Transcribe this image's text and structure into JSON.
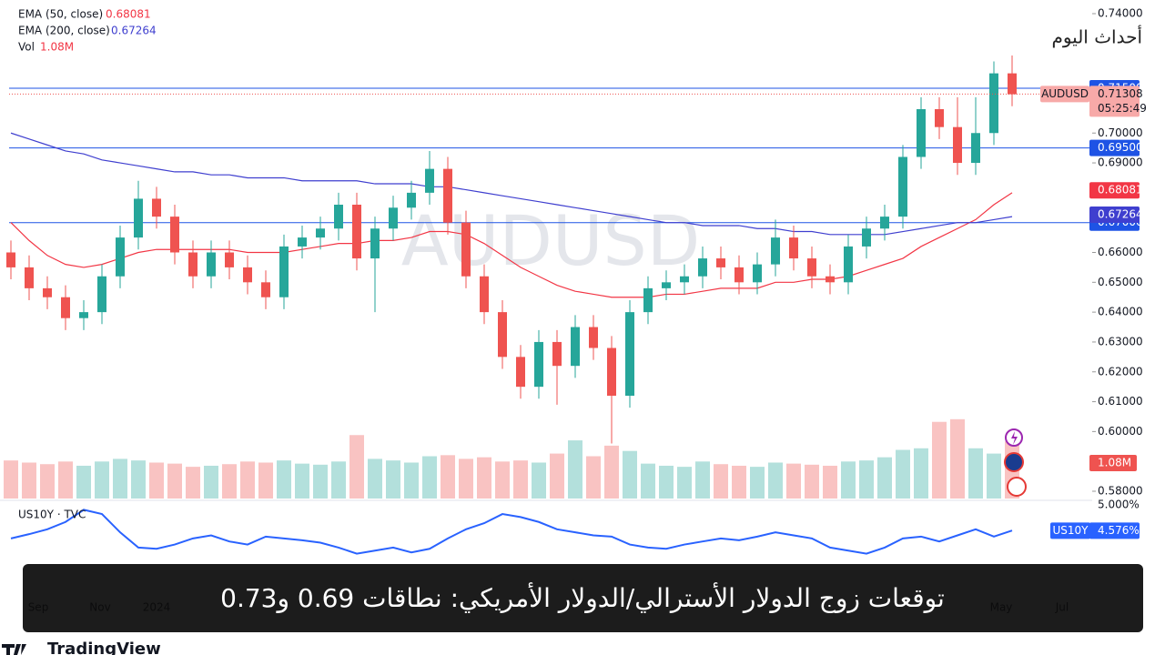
{
  "chart_data": {
    "type": "candlestick",
    "symbol_watermark": "AUDUSD",
    "headline": "توقعات زوج الدولار الأسترالي/الدولار الأمريكي: نطاقات 0.69 و0.73",
    "brand_top": "أحداث اليوم",
    "brand_bottom": "TradingView",
    "ylim": [
      0.58,
      0.74
    ],
    "yticks": [
      {
        "value": 0.74,
        "label": "0.74000"
      },
      {
        "value": 0.7,
        "label": "0.70000"
      },
      {
        "value": 0.69,
        "label": "0.69000"
      },
      {
        "value": 0.66,
        "label": "0.66000"
      },
      {
        "value": 0.65,
        "label": "0.65000"
      },
      {
        "value": 0.64,
        "label": "0.64000"
      },
      {
        "value": 0.63,
        "label": "0.63000"
      },
      {
        "value": 0.62,
        "label": "0.62000"
      },
      {
        "value": 0.61,
        "label": "0.61000"
      },
      {
        "value": 0.6,
        "label": "0.60000"
      },
      {
        "value": 0.58,
        "label": "0.58000"
      }
    ],
    "x_labels": [
      "Sep",
      "Nov",
      "2024",
      "May",
      "Jul"
    ],
    "up_color": "#26a69a",
    "down_color": "#ef5350",
    "open": [
      0.66,
      0.655,
      0.648,
      0.645,
      0.638,
      0.64,
      0.652,
      0.665,
      0.678,
      0.672,
      0.66,
      0.652,
      0.66,
      0.655,
      0.65,
      0.645,
      0.662,
      0.665,
      0.668,
      0.676,
      0.658,
      0.668,
      0.675,
      0.68,
      0.688,
      0.67,
      0.652,
      0.64,
      0.625,
      0.615,
      0.63,
      0.622,
      0.635,
      0.628,
      0.612,
      0.64,
      0.648,
      0.65,
      0.652,
      0.658,
      0.655,
      0.65,
      0.656,
      0.665,
      0.658,
      0.652,
      0.65,
      0.662,
      0.668,
      0.672,
      0.692,
      0.708,
      0.702,
      0.69,
      0.7,
      0.72
    ],
    "high": [
      0.664,
      0.659,
      0.652,
      0.649,
      0.644,
      0.656,
      0.669,
      0.684,
      0.682,
      0.676,
      0.664,
      0.664,
      0.664,
      0.659,
      0.654,
      0.666,
      0.669,
      0.672,
      0.68,
      0.68,
      0.672,
      0.679,
      0.684,
      0.694,
      0.692,
      0.674,
      0.656,
      0.644,
      0.629,
      0.634,
      0.634,
      0.639,
      0.639,
      0.632,
      0.644,
      0.652,
      0.654,
      0.656,
      0.662,
      0.662,
      0.659,
      0.66,
      0.671,
      0.669,
      0.662,
      0.656,
      0.666,
      0.672,
      0.676,
      0.696,
      0.712,
      0.712,
      0.712,
      0.712,
      0.724,
      0.726
    ],
    "low": [
      0.651,
      0.644,
      0.641,
      0.634,
      0.634,
      0.636,
      0.648,
      0.661,
      0.668,
      0.656,
      0.648,
      0.648,
      0.651,
      0.646,
      0.641,
      0.641,
      0.658,
      0.661,
      0.664,
      0.654,
      0.64,
      0.664,
      0.671,
      0.676,
      0.666,
      0.648,
      0.636,
      0.621,
      0.611,
      0.611,
      0.609,
      0.618,
      0.624,
      0.596,
      0.608,
      0.636,
      0.644,
      0.646,
      0.648,
      0.651,
      0.646,
      0.646,
      0.652,
      0.654,
      0.648,
      0.646,
      0.646,
      0.658,
      0.664,
      0.668,
      0.688,
      0.698,
      0.686,
      0.686,
      0.696,
      0.709
    ],
    "close": [
      0.655,
      0.648,
      0.645,
      0.638,
      0.64,
      0.652,
      0.665,
      0.678,
      0.672,
      0.66,
      0.652,
      0.66,
      0.655,
      0.65,
      0.645,
      0.662,
      0.665,
      0.668,
      0.676,
      0.658,
      0.668,
      0.675,
      0.68,
      0.688,
      0.67,
      0.652,
      0.64,
      0.625,
      0.615,
      0.63,
      0.622,
      0.635,
      0.628,
      0.612,
      0.64,
      0.648,
      0.65,
      0.652,
      0.658,
      0.655,
      0.65,
      0.656,
      0.665,
      0.658,
      0.652,
      0.65,
      0.662,
      0.668,
      0.672,
      0.692,
      0.708,
      0.702,
      0.69,
      0.7,
      0.72,
      0.713
    ],
    "levels": [
      {
        "value": 0.715,
        "label": "0.71500"
      },
      {
        "value": 0.695,
        "label": "0.69500"
      },
      {
        "value": 0.67,
        "label": "0.67000"
      }
    ],
    "level_color": "#1e53e5",
    "current": {
      "symbol": "AUDUSD",
      "price": 0.71308,
      "countdown": "05:25:49"
    },
    "series": [
      {
        "name": "EMA (50, close)",
        "last": 0.68081,
        "color": "#f23645",
        "values": [
          0.67,
          0.664,
          0.659,
          0.656,
          0.655,
          0.656,
          0.658,
          0.66,
          0.661,
          0.661,
          0.661,
          0.661,
          0.661,
          0.66,
          0.66,
          0.66,
          0.661,
          0.662,
          0.663,
          0.663,
          0.664,
          0.664,
          0.665,
          0.667,
          0.667,
          0.666,
          0.663,
          0.659,
          0.655,
          0.652,
          0.649,
          0.647,
          0.646,
          0.645,
          0.645,
          0.645,
          0.646,
          0.646,
          0.647,
          0.648,
          0.648,
          0.648,
          0.65,
          0.65,
          0.651,
          0.651,
          0.652,
          0.654,
          0.656,
          0.658,
          0.662,
          0.665,
          0.668,
          0.671,
          0.676,
          0.68
        ]
      },
      {
        "name": "EMA (200, close)",
        "last": 0.67264,
        "color": "#3f3fcf",
        "values": [
          0.7,
          0.698,
          0.696,
          0.694,
          0.693,
          0.691,
          0.69,
          0.689,
          0.688,
          0.687,
          0.687,
          0.686,
          0.686,
          0.685,
          0.685,
          0.685,
          0.684,
          0.684,
          0.684,
          0.684,
          0.683,
          0.683,
          0.683,
          0.682,
          0.682,
          0.681,
          0.68,
          0.679,
          0.678,
          0.677,
          0.676,
          0.675,
          0.674,
          0.673,
          0.672,
          0.671,
          0.67,
          0.67,
          0.669,
          0.669,
          0.669,
          0.668,
          0.668,
          0.667,
          0.667,
          0.666,
          0.666,
          0.666,
          0.666,
          0.667,
          0.668,
          0.669,
          0.67,
          0.67,
          0.671,
          0.672
        ]
      }
    ],
    "volume": {
      "name": "Vol",
      "last": 1.08,
      "last_label": "1.08M",
      "vlim": [
        0,
        1.6
      ],
      "values": [
        0.72,
        0.68,
        0.65,
        0.7,
        0.62,
        0.7,
        0.75,
        0.72,
        0.68,
        0.66,
        0.6,
        0.62,
        0.65,
        0.7,
        0.68,
        0.72,
        0.66,
        0.64,
        0.7,
        1.2,
        0.75,
        0.72,
        0.68,
        0.8,
        0.82,
        0.75,
        0.78,
        0.7,
        0.72,
        0.68,
        0.85,
        1.1,
        0.8,
        1.0,
        0.9,
        0.66,
        0.62,
        0.6,
        0.7,
        0.65,
        0.62,
        0.6,
        0.68,
        0.66,
        0.64,
        0.62,
        0.7,
        0.72,
        0.78,
        0.92,
        0.95,
        1.45,
        1.5,
        0.95,
        0.85,
        1.08
      ]
    },
    "us10y": {
      "name": "US10Y · TVC",
      "symbol": "US10Y",
      "last": 4.576,
      "last_label": "4.576%",
      "color": "#2962ff",
      "ylim": [
        4.0,
        5.0
      ],
      "yticks": [
        {
          "value": 5.0,
          "label": "5.000%"
        }
      ],
      "values": [
        4.45,
        4.52,
        4.6,
        4.72,
        4.92,
        4.85,
        4.55,
        4.3,
        4.28,
        4.35,
        4.45,
        4.5,
        4.4,
        4.35,
        4.48,
        4.45,
        4.42,
        4.38,
        4.3,
        4.2,
        4.25,
        4.3,
        4.22,
        4.28,
        4.45,
        4.6,
        4.7,
        4.85,
        4.8,
        4.72,
        4.6,
        4.55,
        4.5,
        4.48,
        4.35,
        4.3,
        4.28,
        4.35,
        4.4,
        4.45,
        4.42,
        4.48,
        4.55,
        4.5,
        4.45,
        4.3,
        4.25,
        4.2,
        4.3,
        4.45,
        4.48,
        4.4,
        4.5,
        4.6,
        4.48,
        4.58
      ]
    }
  }
}
